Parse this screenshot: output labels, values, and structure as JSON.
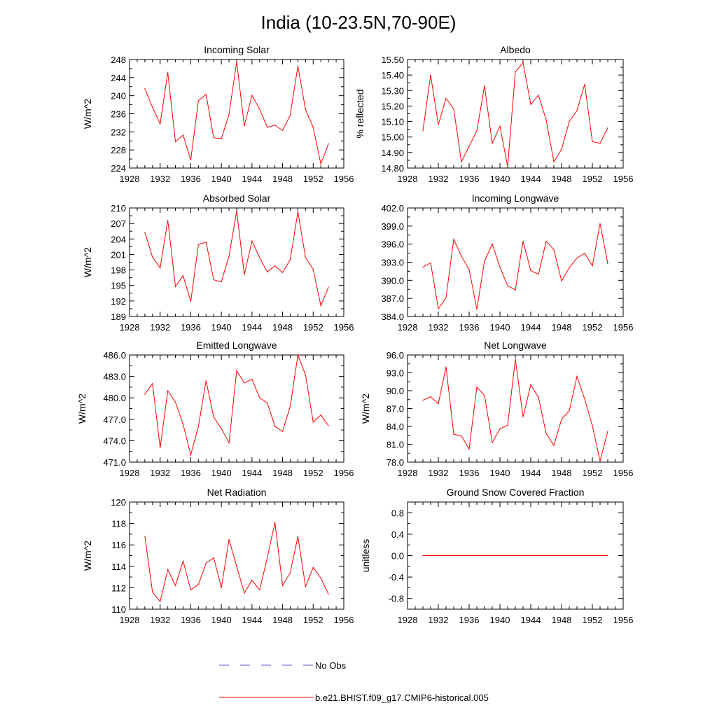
{
  "title": "India (10-23.5N,70-90E)",
  "colors": {
    "model": "#ff0000",
    "obs": "#5a5ad8",
    "axis": "#000000"
  },
  "legend": {
    "obs_label": "No Obs",
    "model_label": "b.e21.BHIST.f09_g17.CMIP6-historical.005"
  },
  "chart_data": [
    {
      "id": "incoming-solar",
      "type": "line",
      "title": "Incoming Solar",
      "xlabel": "",
      "ylabel": "W/m^2",
      "xlim": [
        1928,
        1956
      ],
      "ylim": [
        224,
        248
      ],
      "xticks": [
        1928,
        1932,
        1936,
        1940,
        1944,
        1948,
        1952,
        1956
      ],
      "xtick_labels": [
        "1928",
        "1932",
        "1936",
        "1940",
        "1944",
        "1948",
        "1952",
        "1956"
      ],
      "yticks": [
        224,
        228,
        232,
        236,
        240,
        244,
        248
      ],
      "ytick_labels": [
        "224",
        "228",
        "232",
        "236",
        "240",
        "244",
        "248"
      ],
      "x": [
        1930,
        1931,
        1932,
        1933,
        1934,
        1935,
        1936,
        1937,
        1938,
        1939,
        1940,
        1941,
        1942,
        1943,
        1944,
        1945,
        1946,
        1947,
        1948,
        1949,
        1950,
        1951,
        1952,
        1953,
        1954
      ],
      "series": [
        {
          "name": "b.e21.BHIST.f09_g17.CMIP6-historical.005",
          "values": [
            241.6,
            237.4,
            233.8,
            245.1,
            229.8,
            231.3,
            225.8,
            238.9,
            240.3,
            230.7,
            230.5,
            235.9,
            247.5,
            233.3,
            240.1,
            237.0,
            233.0,
            233.5,
            232.3,
            235.7,
            246.6,
            236.9,
            233.0,
            224.9,
            229.4
          ]
        }
      ]
    },
    {
      "id": "albedo",
      "type": "line",
      "title": "Albedo",
      "xlabel": "",
      "ylabel": "% reflected",
      "xlim": [
        1928,
        1956
      ],
      "ylim": [
        14.8,
        15.5
      ],
      "xticks": [
        1928,
        1932,
        1936,
        1940,
        1944,
        1948,
        1952,
        1956
      ],
      "xtick_labels": [
        "1928",
        "1932",
        "1936",
        "1940",
        "1944",
        "1948",
        "1952",
        "1956"
      ],
      "yticks": [
        14.8,
        14.9,
        15.0,
        15.1,
        15.2,
        15.3,
        15.4,
        15.5
      ],
      "ytick_labels": [
        "14.80",
        "14.90",
        "15.00",
        "15.10",
        "15.20",
        "15.30",
        "15.40",
        "15.50"
      ],
      "x": [
        1930,
        1931,
        1932,
        1933,
        1934,
        1935,
        1936,
        1937,
        1938,
        1939,
        1940,
        1941,
        1942,
        1943,
        1944,
        1945,
        1946,
        1947,
        1948,
        1949,
        1950,
        1951,
        1952,
        1953,
        1954
      ],
      "series": [
        {
          "name": "b.e21.BHIST.f09_g17.CMIP6-historical.005",
          "values": [
            15.04,
            15.4,
            15.08,
            15.25,
            15.18,
            14.84,
            14.94,
            15.04,
            15.33,
            14.96,
            15.07,
            14.81,
            15.42,
            15.48,
            15.21,
            15.27,
            15.11,
            14.84,
            14.92,
            15.1,
            15.17,
            15.34,
            14.97,
            14.96,
            15.06
          ]
        }
      ]
    },
    {
      "id": "absorbed-solar",
      "type": "line",
      "title": "Absorbed Solar",
      "xlabel": "",
      "ylabel": "W/m^2",
      "xlim": [
        1928,
        1956
      ],
      "ylim": [
        189,
        210
      ],
      "xticks": [
        1928,
        1932,
        1936,
        1940,
        1944,
        1948,
        1952,
        1956
      ],
      "xtick_labels": [
        "1928",
        "1932",
        "1936",
        "1940",
        "1944",
        "1948",
        "1952",
        "1956"
      ],
      "yticks": [
        189,
        192,
        195,
        198,
        201,
        204,
        207,
        210
      ],
      "ytick_labels": [
        "189",
        "192",
        "195",
        "198",
        "201",
        "204",
        "207",
        "210"
      ],
      "x": [
        1930,
        1931,
        1932,
        1933,
        1934,
        1935,
        1936,
        1937,
        1938,
        1939,
        1940,
        1941,
        1942,
        1943,
        1944,
        1945,
        1946,
        1947,
        1948,
        1949,
        1950,
        1951,
        1952,
        1953,
        1954
      ],
      "series": [
        {
          "name": "b.e21.BHIST.f09_g17.CMIP6-historical.005",
          "values": [
            205.3,
            200.5,
            198.4,
            207.6,
            194.8,
            196.9,
            191.9,
            202.9,
            203.4,
            196.1,
            195.7,
            200.7,
            209.4,
            197.1,
            203.6,
            200.4,
            197.6,
            198.8,
            197.5,
            200.0,
            209.3,
            200.4,
            198.1,
            191.1,
            194.7
          ]
        }
      ]
    },
    {
      "id": "incoming-longwave",
      "type": "line",
      "title": "Incoming Longwave",
      "xlabel": "",
      "ylabel": "",
      "xlim": [
        1928,
        1956
      ],
      "ylim": [
        384,
        402
      ],
      "xticks": [
        1928,
        1932,
        1936,
        1940,
        1944,
        1948,
        1952,
        1956
      ],
      "xtick_labels": [
        "1928",
        "1932",
        "1936",
        "1940",
        "1944",
        "1948",
        "1952",
        "1956"
      ],
      "yticks": [
        384,
        387,
        390,
        393,
        396,
        399,
        402
      ],
      "ytick_labels": [
        "384.0",
        "387.0",
        "390.0",
        "393.0",
        "396.0",
        "399.0",
        "402.0"
      ],
      "x": [
        1930,
        1931,
        1932,
        1933,
        1934,
        1935,
        1936,
        1937,
        1938,
        1939,
        1940,
        1941,
        1942,
        1943,
        1944,
        1945,
        1946,
        1947,
        1948,
        1949,
        1950,
        1951,
        1952,
        1953,
        1954
      ],
      "series": [
        {
          "name": "b.e21.BHIST.f09_g17.CMIP6-historical.005",
          "values": [
            392.2,
            392.9,
            385.3,
            387.1,
            396.8,
            394.0,
            391.8,
            385.2,
            393.2,
            396.0,
            392.2,
            389.1,
            388.4,
            396.5,
            391.6,
            391.0,
            396.5,
            395.1,
            389.9,
            392.1,
            393.7,
            394.5,
            392.4,
            399.4,
            392.8
          ]
        }
      ]
    },
    {
      "id": "emitted-longwave",
      "type": "line",
      "title": "Emitted Longwave",
      "xlabel": "",
      "ylabel": "W/m^2",
      "xlim": [
        1928,
        1956
      ],
      "ylim": [
        471,
        486
      ],
      "xticks": [
        1928,
        1932,
        1936,
        1940,
        1944,
        1948,
        1952,
        1956
      ],
      "xtick_labels": [
        "1928",
        "1932",
        "1936",
        "1940",
        "1944",
        "1948",
        "1952",
        "1956"
      ],
      "yticks": [
        471,
        474,
        477,
        480,
        483,
        486
      ],
      "ytick_labels": [
        "471.0",
        "474.0",
        "477.0",
        "480.0",
        "483.0",
        "486.0"
      ],
      "x": [
        1930,
        1931,
        1932,
        1933,
        1934,
        1935,
        1936,
        1937,
        1938,
        1939,
        1940,
        1941,
        1942,
        1943,
        1944,
        1945,
        1946,
        1947,
        1948,
        1949,
        1950,
        1951,
        1952,
        1953,
        1954
      ],
      "series": [
        {
          "name": "b.e21.BHIST.f09_g17.CMIP6-historical.005",
          "values": [
            480.5,
            482.0,
            473.0,
            481.0,
            479.4,
            476.3,
            472.0,
            476.0,
            482.4,
            477.3,
            475.7,
            473.7,
            483.8,
            482.1,
            482.6,
            480.0,
            479.3,
            476.0,
            475.3,
            478.8,
            486.0,
            483.2,
            476.6,
            477.6,
            476.1
          ]
        }
      ]
    },
    {
      "id": "net-longwave",
      "type": "line",
      "title": "Net Longwave",
      "xlabel": "",
      "ylabel": "W/m^2",
      "xlim": [
        1928,
        1956
      ],
      "ylim": [
        78,
        96
      ],
      "xticks": [
        1928,
        1932,
        1936,
        1940,
        1944,
        1948,
        1952,
        1956
      ],
      "xtick_labels": [
        "1928",
        "1932",
        "1936",
        "1940",
        "1944",
        "1948",
        "1952",
        "1956"
      ],
      "yticks": [
        78,
        81,
        84,
        87,
        90,
        93,
        96
      ],
      "ytick_labels": [
        "78.0",
        "81.0",
        "84.0",
        "87.0",
        "90.0",
        "93.0",
        "96.0"
      ],
      "x": [
        1930,
        1931,
        1932,
        1933,
        1934,
        1935,
        1936,
        1937,
        1938,
        1939,
        1940,
        1941,
        1942,
        1943,
        1944,
        1945,
        1946,
        1947,
        1948,
        1949,
        1950,
        1951,
        1952,
        1953,
        1954
      ],
      "series": [
        {
          "name": "b.e21.BHIST.f09_g17.CMIP6-historical.005",
          "values": [
            88.4,
            89.0,
            87.8,
            94.0,
            82.7,
            82.4,
            80.2,
            90.6,
            89.2,
            81.3,
            83.6,
            84.2,
            95.3,
            85.6,
            91.0,
            88.9,
            82.8,
            80.8,
            85.2,
            86.6,
            92.4,
            88.6,
            84.1,
            78.2,
            83.2
          ]
        }
      ]
    },
    {
      "id": "net-radiation",
      "type": "line",
      "title": "Net Radiation",
      "xlabel": "",
      "ylabel": "W/m^2",
      "xlim": [
        1928,
        1956
      ],
      "ylim": [
        110,
        120
      ],
      "xticks": [
        1928,
        1932,
        1936,
        1940,
        1944,
        1948,
        1952,
        1956
      ],
      "xtick_labels": [
        "1928",
        "1932",
        "1936",
        "1940",
        "1944",
        "1948",
        "1952",
        "1956"
      ],
      "yticks": [
        110,
        112,
        114,
        116,
        118,
        120
      ],
      "ytick_labels": [
        "110",
        "112",
        "114",
        "116",
        "118",
        "120"
      ],
      "x": [
        1930,
        1931,
        1932,
        1933,
        1934,
        1935,
        1936,
        1937,
        1938,
        1939,
        1940,
        1941,
        1942,
        1943,
        1944,
        1945,
        1946,
        1947,
        1948,
        1949,
        1950,
        1951,
        1952,
        1953,
        1954
      ],
      "series": [
        {
          "name": "b.e21.BHIST.f09_g17.CMIP6-historical.005",
          "values": [
            116.8,
            111.6,
            110.7,
            113.7,
            112.2,
            114.5,
            111.8,
            112.3,
            114.3,
            114.8,
            112.0,
            116.5,
            114.0,
            111.5,
            112.7,
            111.8,
            114.8,
            118.1,
            112.2,
            113.4,
            116.8,
            112.1,
            113.9,
            112.9,
            111.4
          ]
        }
      ]
    },
    {
      "id": "ground-snow",
      "type": "line",
      "title": "Ground Snow Covered Fraction",
      "xlabel": "",
      "ylabel": "unitless",
      "xlim": [
        1928,
        1956
      ],
      "ylim": [
        -1.0,
        1.0
      ],
      "xticks": [
        1928,
        1932,
        1936,
        1940,
        1944,
        1948,
        1952,
        1956
      ],
      "xtick_labels": [
        "1928",
        "1932",
        "1936",
        "1940",
        "1944",
        "1948",
        "1952",
        "1956"
      ],
      "yticks": [
        -0.8,
        -0.4,
        0.0,
        0.4,
        0.8
      ],
      "ytick_labels": [
        "-0.8",
        "-0.4",
        "0.0",
        "0.4",
        "0.8"
      ],
      "x": [
        1930,
        1931,
        1932,
        1933,
        1934,
        1935,
        1936,
        1937,
        1938,
        1939,
        1940,
        1941,
        1942,
        1943,
        1944,
        1945,
        1946,
        1947,
        1948,
        1949,
        1950,
        1951,
        1952,
        1953,
        1954
      ],
      "series": [
        {
          "name": "b.e21.BHIST.f09_g17.CMIP6-historical.005",
          "values": [
            0,
            0,
            0,
            0,
            0,
            0,
            0,
            0,
            0,
            0,
            0,
            0,
            0,
            0,
            0,
            0,
            0,
            0,
            0,
            0,
            0,
            0,
            0,
            0,
            0
          ]
        }
      ]
    }
  ]
}
